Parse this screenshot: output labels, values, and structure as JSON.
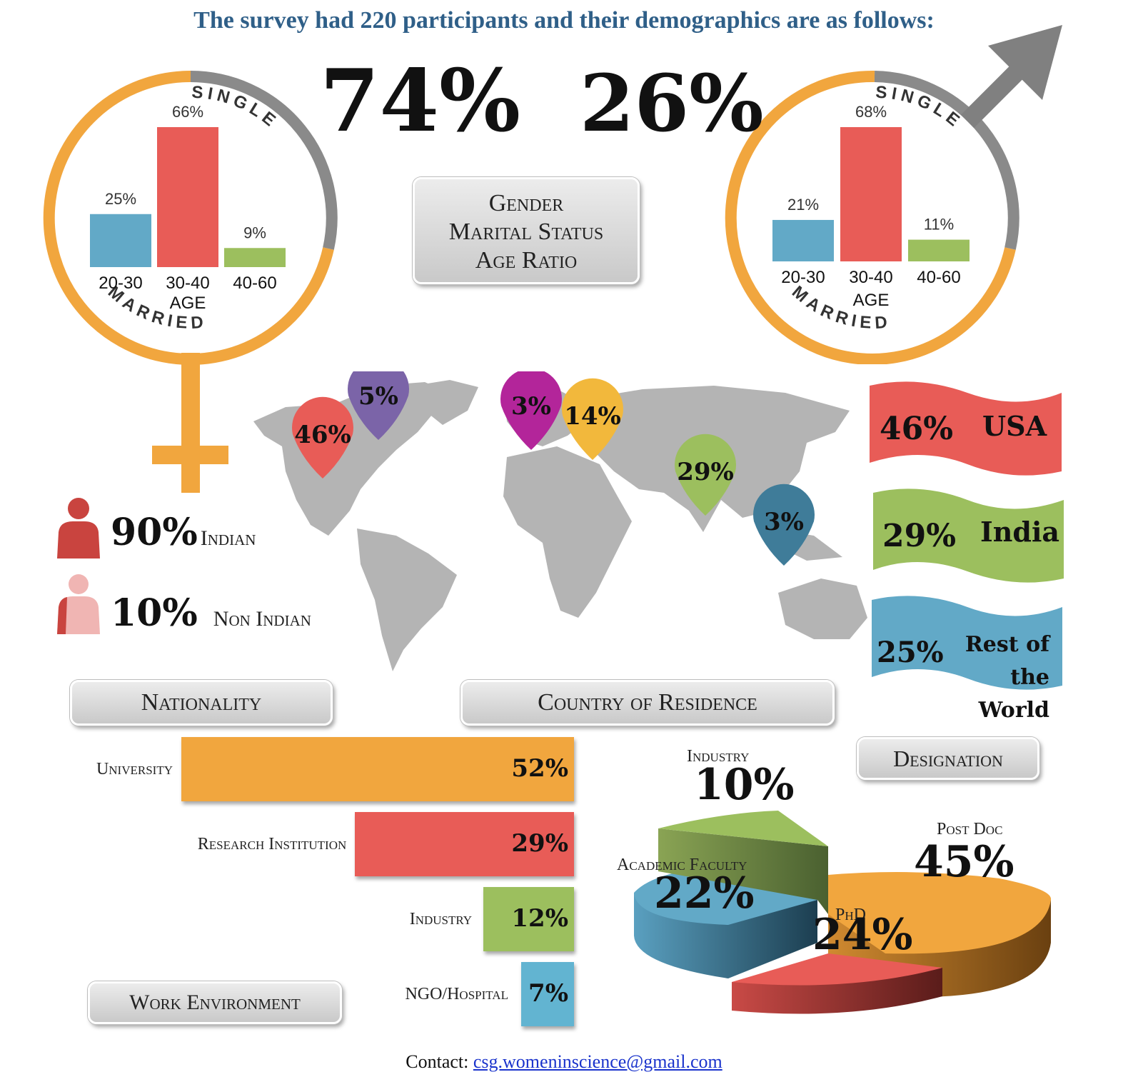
{
  "title": "The survey had 220 participants and their demographics are as follows:",
  "gender": {
    "female_pct": "74%",
    "male_pct": "26%",
    "female_symbol_icon": "venus-symbol-icon",
    "male_symbol_icon": "mars-symbol-icon"
  },
  "gender_box": {
    "line1": "Gender",
    "line2": "Marital Status",
    "line3": "Age Ratio"
  },
  "ring_labels": {
    "single": "SINGLE",
    "married": "MARRIED",
    "age": "AGE"
  },
  "nationality": {
    "indian_pct": "90%",
    "indian_label": "Indian",
    "non_indian_pct": "10%",
    "non_indian_label": "Non Indian",
    "box_label": "Nationality"
  },
  "residence": {
    "box_label": "Country of Residence",
    "banners": [
      {
        "pct": "46%",
        "label": "USA",
        "color": "#e85c57"
      },
      {
        "pct": "29%",
        "label": "India",
        "color": "#9cbf5e"
      },
      {
        "pct": "25%",
        "label": "Rest of the World",
        "color": "#62a9c7"
      }
    ],
    "pins": [
      {
        "pct": "46%",
        "color": "#e85c57"
      },
      {
        "pct": "5%",
        "color": "#7b64a8"
      },
      {
        "pct": "3%",
        "color": "#b3259a"
      },
      {
        "pct": "14%",
        "color": "#f2b83c"
      },
      {
        "pct": "29%",
        "color": "#9cbf5e"
      },
      {
        "pct": "3%",
        "color": "#3f7c99"
      }
    ]
  },
  "work": {
    "box_label": "Work Environment"
  },
  "designation": {
    "box_label": "Designation"
  },
  "contact": {
    "label": "Contact:",
    "email": "csg.womeninscience@gmail.com"
  },
  "chart_data": [
    {
      "type": "bar",
      "title": "",
      "xlabel": "AGE",
      "categories": [
        "20-30",
        "30-40",
        "40-60"
      ],
      "values": [
        25,
        66,
        9
      ],
      "value_labels": [
        "25%",
        "66%",
        "9%"
      ],
      "colors": [
        "#62a9c7",
        "#e85c57",
        "#9cbf5e"
      ],
      "ylim": [
        0,
        66
      ]
    },
    {
      "type": "bar",
      "title": "",
      "xlabel": "AGE",
      "categories": [
        "20-30",
        "30-40",
        "40-60"
      ],
      "values": [
        21,
        68,
        11
      ],
      "value_labels": [
        "21%",
        "68%",
        "11%"
      ],
      "colors": [
        "#62a9c7",
        "#e85c57",
        "#9cbf5e"
      ],
      "ylim": [
        0,
        68
      ]
    },
    {
      "type": "bar",
      "orientation": "horizontal",
      "title": "",
      "categories": [
        "University",
        "Research Institution",
        "Industry",
        "NGO/Hospital"
      ],
      "values": [
        52,
        29,
        12,
        7
      ],
      "value_labels": [
        "52%",
        "29%",
        "12%",
        "7%"
      ],
      "colors": [
        "#f1a63e",
        "#e85c57",
        "#9cbf5e",
        "#62b4d1"
      ],
      "xlim": [
        0,
        52
      ]
    },
    {
      "type": "pie",
      "title": "",
      "categories": [
        "Post Doc",
        "PhD",
        "Academic Faculty",
        "Industry"
      ],
      "values": [
        45,
        24,
        22,
        10
      ],
      "value_labels": [
        "45%",
        "24%",
        "22%",
        "10%"
      ],
      "colors": [
        "#f1a63e",
        "#e85c57",
        "#62a9c7",
        "#9cbf5e"
      ]
    }
  ]
}
